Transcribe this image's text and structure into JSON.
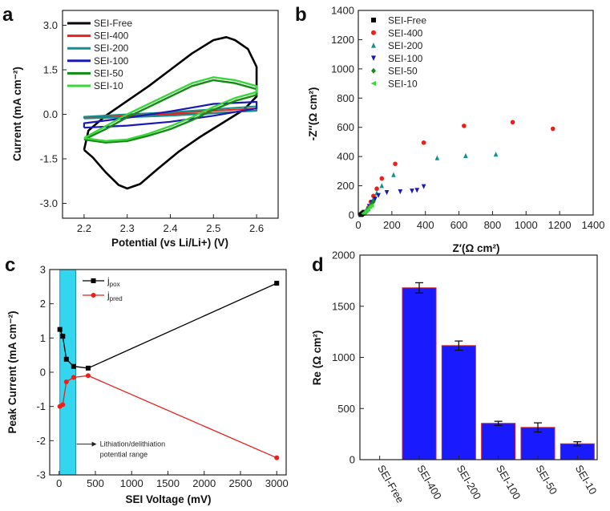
{
  "chart_data": [
    {
      "panel": "a",
      "type": "line",
      "xlabel": "Potential (vs Li/Li+) (V)",
      "ylabel": "Current (mA cm⁻²)",
      "xlim": [
        2.15,
        2.65
      ],
      "ylim": [
        -3.5,
        3.5
      ],
      "xticks": [
        2.2,
        2.3,
        2.4,
        2.5,
        2.6
      ],
      "xtick_labels": [
        "2.2",
        "2.3",
        "2.4",
        "2.5",
        "2.6"
      ],
      "yticks": [
        -3.0,
        -1.5,
        0.0,
        1.5,
        3.0
      ],
      "ytick_labels": [
        "-3.0",
        "-1.5",
        "0.0",
        "1.5",
        "3.0"
      ],
      "legend_position": "top-left",
      "series": [
        {
          "name": "SEI-Free",
          "color": "#000000",
          "width": 2.6,
          "points": [
            [
              2.2,
              -1.2
            ],
            [
              2.22,
              -1.45
            ],
            [
              2.25,
              -1.95
            ],
            [
              2.28,
              -2.38
            ],
            [
              2.3,
              -2.5
            ],
            [
              2.33,
              -2.35
            ],
            [
              2.37,
              -1.85
            ],
            [
              2.42,
              -1.25
            ],
            [
              2.47,
              -0.75
            ],
            [
              2.52,
              -0.3
            ],
            [
              2.57,
              0.15
            ],
            [
              2.6,
              0.6
            ],
            [
              2.6,
              1.6
            ],
            [
              2.58,
              2.2
            ],
            [
              2.55,
              2.5
            ],
            [
              2.53,
              2.6
            ],
            [
              2.5,
              2.5
            ],
            [
              2.45,
              2.05
            ],
            [
              2.4,
              1.5
            ],
            [
              2.35,
              0.95
            ],
            [
              2.3,
              0.45
            ],
            [
              2.25,
              -0.05
            ],
            [
              2.21,
              -0.55
            ],
            [
              2.2,
              -1.2
            ]
          ]
        },
        {
          "name": "SEI-400",
          "color": "#e8221b",
          "width": 2,
          "points": [
            [
              2.2,
              -0.1
            ],
            [
              2.3,
              -0.05
            ],
            [
              2.4,
              0.0
            ],
            [
              2.5,
              0.05
            ],
            [
              2.6,
              0.12
            ],
            [
              2.6,
              0.2
            ],
            [
              2.5,
              0.12
            ],
            [
              2.4,
              0.05
            ],
            [
              2.3,
              -0.02
            ],
            [
              2.2,
              -0.1
            ]
          ]
        },
        {
          "name": "SEI-200",
          "color": "#14908c",
          "width": 2,
          "points": [
            [
              2.2,
              -0.14
            ],
            [
              2.3,
              -0.1
            ],
            [
              2.4,
              -0.05
            ],
            [
              2.5,
              0.03
            ],
            [
              2.6,
              0.13
            ],
            [
              2.6,
              0.27
            ],
            [
              2.5,
              0.17
            ],
            [
              2.4,
              0.07
            ],
            [
              2.3,
              0.0
            ],
            [
              2.2,
              -0.08
            ],
            [
              2.2,
              -0.14
            ]
          ]
        },
        {
          "name": "SEI-100",
          "color": "#1a1ab4",
          "width": 2.2,
          "points": [
            [
              2.2,
              -0.45
            ],
            [
              2.3,
              -0.38
            ],
            [
              2.4,
              -0.25
            ],
            [
              2.5,
              -0.05
            ],
            [
              2.6,
              0.2
            ],
            [
              2.6,
              0.42
            ],
            [
              2.5,
              0.35
            ],
            [
              2.4,
              0.1
            ],
            [
              2.3,
              -0.12
            ],
            [
              2.2,
              -0.3
            ],
            [
              2.2,
              -0.45
            ]
          ]
        },
        {
          "name": "SEI-50",
          "color": "#138a13",
          "width": 2.4,
          "points": [
            [
              2.2,
              -0.85
            ],
            [
              2.25,
              -0.95
            ],
            [
              2.3,
              -0.9
            ],
            [
              2.35,
              -0.72
            ],
            [
              2.4,
              -0.5
            ],
            [
              2.45,
              -0.2
            ],
            [
              2.5,
              0.15
            ],
            [
              2.55,
              0.45
            ],
            [
              2.6,
              0.65
            ],
            [
              2.6,
              0.85
            ],
            [
              2.55,
              1.05
            ],
            [
              2.5,
              1.15
            ],
            [
              2.45,
              0.95
            ],
            [
              2.4,
              0.6
            ],
            [
              2.35,
              0.25
            ],
            [
              2.3,
              -0.1
            ],
            [
              2.25,
              -0.5
            ],
            [
              2.2,
              -0.85
            ]
          ]
        },
        {
          "name": "SEI-10",
          "color": "#3bd63b",
          "width": 2.4,
          "points": [
            [
              2.2,
              -0.8
            ],
            [
              2.25,
              -0.9
            ],
            [
              2.3,
              -0.85
            ],
            [
              2.35,
              -0.65
            ],
            [
              2.4,
              -0.4
            ],
            [
              2.45,
              -0.1
            ],
            [
              2.5,
              0.25
            ],
            [
              2.55,
              0.55
            ],
            [
              2.6,
              0.75
            ],
            [
              2.6,
              0.95
            ],
            [
              2.55,
              1.15
            ],
            [
              2.5,
              1.25
            ],
            [
              2.45,
              1.05
            ],
            [
              2.4,
              0.7
            ],
            [
              2.35,
              0.35
            ],
            [
              2.3,
              0.0
            ],
            [
              2.25,
              -0.4
            ],
            [
              2.2,
              -0.8
            ]
          ]
        }
      ]
    },
    {
      "panel": "b",
      "type": "scatter",
      "xlabel": "Z′(Ω cm²)",
      "ylabel": "-Z′′(Ω cm²)",
      "xlim": [
        0,
        1400
      ],
      "ylim": [
        0,
        1400
      ],
      "xticks": [
        0,
        200,
        400,
        600,
        800,
        1000,
        1200,
        1400
      ],
      "xtick_labels": [
        "0",
        "200",
        "400",
        "600",
        "800",
        "1000",
        "1200",
        "1400"
      ],
      "yticks": [
        0,
        200,
        400,
        600,
        800,
        1000,
        1200,
        1400
      ],
      "ytick_labels": [
        "0",
        "200",
        "400",
        "600",
        "800",
        "1000",
        "1200",
        "1400"
      ],
      "legend_position": "top-left",
      "series": [
        {
          "name": "SEI-Free",
          "color": "#000000",
          "marker": "square",
          "points": [
            [
              15,
              2
            ],
            [
              20,
              5
            ],
            [
              25,
              10
            ],
            [
              30,
              15
            ],
            [
              35,
              20
            ]
          ]
        },
        {
          "name": "SEI-400",
          "color": "#e8221b",
          "marker": "circle",
          "points": [
            [
              60,
              50
            ],
            [
              75,
              90
            ],
            [
              90,
              130
            ],
            [
              110,
              180
            ],
            [
              140,
              250
            ],
            [
              220,
              350
            ],
            [
              390,
              495
            ],
            [
              630,
              610
            ],
            [
              920,
              635
            ],
            [
              1160,
              590
            ]
          ]
        },
        {
          "name": "SEI-200",
          "color": "#14908c",
          "marker": "triangle",
          "points": [
            [
              60,
              40
            ],
            [
              75,
              70
            ],
            [
              90,
              110
            ],
            [
              110,
              150
            ],
            [
              140,
              200
            ],
            [
              210,
              275
            ],
            [
              470,
              390
            ],
            [
              640,
              405
            ],
            [
              820,
              415
            ]
          ]
        },
        {
          "name": "SEI-100",
          "color": "#1a1ab4",
          "marker": "triangle-down",
          "points": [
            [
              55,
              30
            ],
            [
              65,
              60
            ],
            [
              80,
              85
            ],
            [
              100,
              110
            ],
            [
              120,
              135
            ],
            [
              170,
              155
            ],
            [
              250,
              160
            ],
            [
              320,
              165
            ],
            [
              350,
              170
            ],
            [
              390,
              195
            ]
          ]
        },
        {
          "name": "SEI-50",
          "color": "#138a13",
          "marker": "diamond",
          "points": [
            [
              40,
              15
            ],
            [
              50,
              30
            ],
            [
              60,
              45
            ],
            [
              70,
              60
            ],
            [
              80,
              75
            ],
            [
              90,
              90
            ]
          ]
        },
        {
          "name": "SEI-10",
          "color": "#3bd63b",
          "marker": "triangle-left",
          "points": [
            [
              30,
              10
            ],
            [
              40,
              20
            ],
            [
              50,
              30
            ],
            [
              60,
              40
            ],
            [
              70,
              55
            ],
            [
              80,
              65
            ]
          ]
        }
      ]
    },
    {
      "panel": "c",
      "type": "line",
      "xlabel": "SEI Voltage (mV)",
      "ylabel": "Peak Current (mA cm⁻²)",
      "xlim": [
        -130,
        3130
      ],
      "ylim": [
        -3,
        3
      ],
      "xticks": [
        0,
        500,
        1000,
        1500,
        2000,
        2500,
        3000
      ],
      "xtick_labels": [
        "0",
        "500",
        "1000",
        "1500",
        "2000",
        "2500",
        "3000"
      ],
      "yticks": [
        -3,
        -2,
        -1,
        0,
        1,
        2,
        3
      ],
      "ytick_labels": [
        "-3",
        "-2",
        "-1",
        "0",
        "1",
        "2",
        "3"
      ],
      "shaded_range": [
        10,
        230
      ],
      "shade_color": "#33d6ee",
      "annotation": [
        "Lithiation/delithiation",
        "potential range"
      ],
      "legend_position": "top-center",
      "series": [
        {
          "name": "j",
          "subscript": "pox",
          "color": "#000000",
          "marker": "square",
          "x": [
            10,
            50,
            100,
            200,
            400,
            3000
          ],
          "y": [
            1.25,
            1.05,
            0.38,
            0.17,
            0.12,
            2.6
          ]
        },
        {
          "name": "j",
          "subscript": "pred",
          "color": "#e8221b",
          "marker": "circle",
          "x": [
            10,
            50,
            100,
            200,
            400,
            3000
          ],
          "y": [
            -1.0,
            -0.95,
            -0.28,
            -0.15,
            -0.1,
            -2.5
          ]
        }
      ]
    },
    {
      "panel": "d",
      "type": "bar",
      "ylabel": "Re (Ω cm²)",
      "ylim": [
        0,
        2000
      ],
      "yticks": [
        0,
        500,
        1000,
        1500,
        2000
      ],
      "ytick_labels": [
        "0",
        "500",
        "1000",
        "1500",
        "2000"
      ],
      "categories": [
        "SEI-Free",
        "SEI-400",
        "SEI-200",
        "SEI-100",
        "SEI-50",
        "SEI-10"
      ],
      "values": [
        0,
        1680,
        1115,
        355,
        315,
        155
      ],
      "errors": [
        0,
        50,
        45,
        20,
        45,
        20
      ],
      "bar_color": "#1a1aff",
      "bar_edge_color": "#cc2020"
    }
  ]
}
